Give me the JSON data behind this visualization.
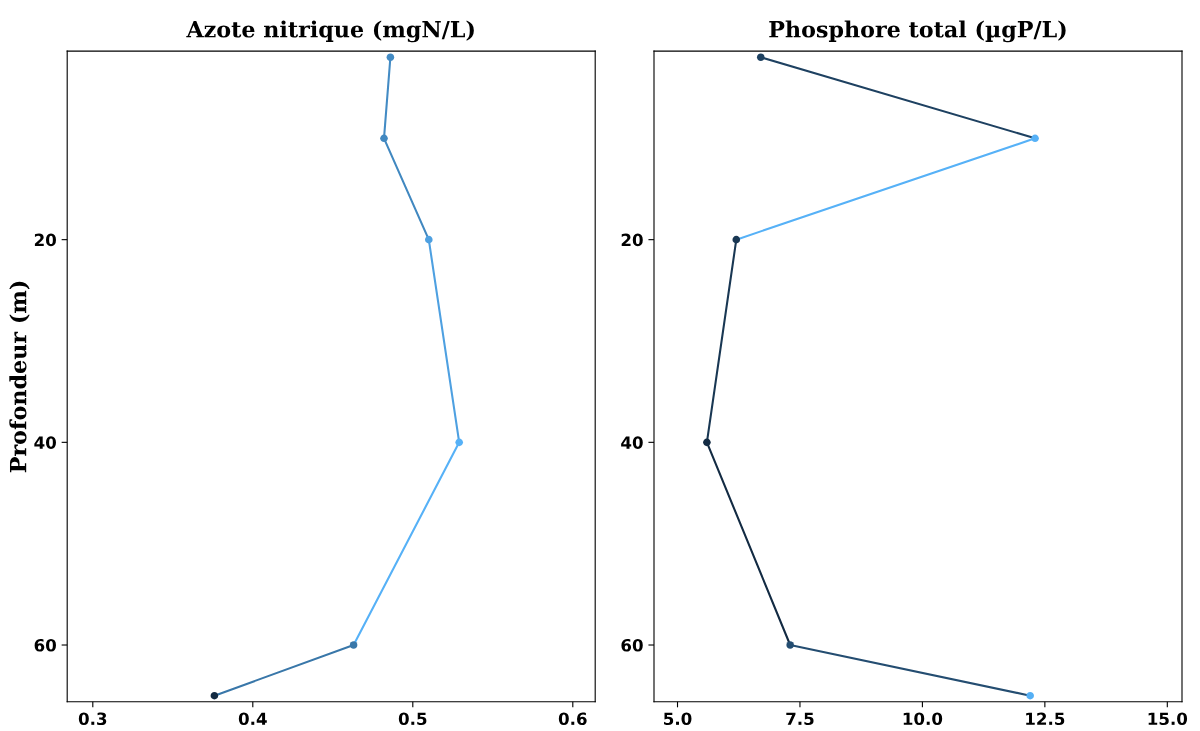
{
  "chart_data": [
    {
      "type": "line",
      "title": "Azote nitrique (mgN/L)",
      "ylabel": "Profondeur (m)",
      "grid": false,
      "legend": false,
      "series": [
        {
          "x": [
            0.486,
            0.482
          ],
          "values": [
            2,
            10
          ],
          "color": "#438bc4"
        },
        {
          "x": [
            0.482,
            0.51
          ],
          "values": [
            10,
            20
          ],
          "color": "#4188c0"
        },
        {
          "x": [
            0.51,
            0.529
          ],
          "values": [
            20,
            40
          ],
          "color": "#4ea0e1"
        },
        {
          "x": [
            0.529,
            0.463
          ],
          "values": [
            40,
            60
          ],
          "color": "#56b1f7"
        },
        {
          "x": [
            0.463,
            0.376
          ],
          "values": [
            60,
            65
          ],
          "color": "#3977a9"
        },
        {
          "type": "scatter",
          "marker": "circle",
          "x": [
            0.486,
            0.482,
            0.51,
            0.529,
            0.463,
            0.376
          ],
          "values": [
            2,
            10,
            20,
            40,
            60,
            65
          ],
          "colors": [
            "#438bc4",
            "#4188c0",
            "#4ea0e1",
            "#56b1f7",
            "#3977a9",
            "#132b43"
          ]
        }
      ],
      "xlim": [
        0.284,
        0.614
      ],
      "xticks": [
        0.3,
        0.4,
        0.5,
        0.6
      ],
      "ylim": [
        65.6,
        1.4
      ],
      "yticks": [
        20,
        40,
        60
      ]
    },
    {
      "type": "line",
      "title": "Phosphore total (µgP/L)",
      "grid": false,
      "legend": false,
      "series": [
        {
          "x": [
            6.7,
            12.3
          ],
          "values": [
            2,
            10
          ],
          "color": "#1e4161"
        },
        {
          "x": [
            12.3,
            6.2
          ],
          "values": [
            10,
            20
          ],
          "color": "#56b1f7"
        },
        {
          "x": [
            6.2,
            5.6
          ],
          "values": [
            20,
            40
          ],
          "color": "#193753"
        },
        {
          "x": [
            5.6,
            7.3
          ],
          "values": [
            40,
            60
          ],
          "color": "#132b43"
        },
        {
          "x": [
            7.3,
            12.2
          ],
          "values": [
            60,
            65
          ],
          "color": "#244d71"
        },
        {
          "type": "scatter",
          "marker": "circle",
          "x": [
            6.7,
            12.3,
            6.2,
            5.6,
            7.3,
            12.2
          ],
          "values": [
            2,
            10,
            20,
            40,
            60,
            65
          ],
          "colors": [
            "#1e4161",
            "#56b1f7",
            "#193753",
            "#132b43",
            "#244d71",
            "#55aff4"
          ]
        }
      ],
      "xlim": [
        4.52,
        15.3
      ],
      "xticks": [
        {
          "value": 5,
          "label": "5.0"
        },
        {
          "value": 7.5,
          "label": "7.5"
        },
        {
          "value": 10,
          "label": "10.0"
        },
        {
          "value": 12.5,
          "label": "12.5"
        },
        {
          "value": 15,
          "label": "15.0"
        }
      ],
      "ylim": [
        65.6,
        1.4
      ],
      "yticks": [
        20,
        40,
        60
      ]
    }
  ]
}
